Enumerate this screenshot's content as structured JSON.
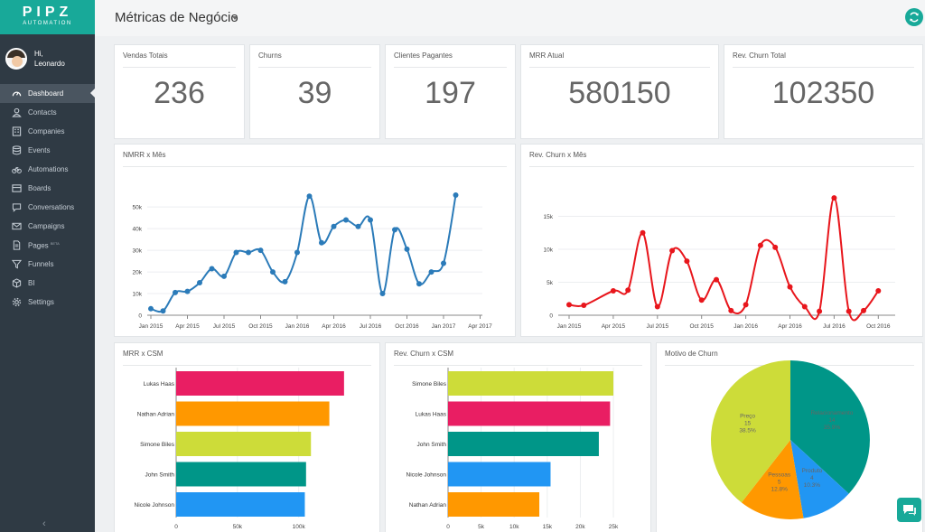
{
  "brand": {
    "name": "PIPZ",
    "subtitle": "AUTOMATION"
  },
  "user": {
    "greeting": "Hi,",
    "name": "Leonardo"
  },
  "sidebar": {
    "items": [
      {
        "label": "Dashboard",
        "icon": "dashboard-icon",
        "active": true
      },
      {
        "label": "Contacts",
        "icon": "user-icon"
      },
      {
        "label": "Companies",
        "icon": "building-icon"
      },
      {
        "label": "Events",
        "icon": "database-icon"
      },
      {
        "label": "Automations",
        "icon": "bicycle-icon"
      },
      {
        "label": "Boards",
        "icon": "board-icon"
      },
      {
        "label": "Conversations",
        "icon": "chat-icon"
      },
      {
        "label": "Campaigns",
        "icon": "envelope-icon"
      },
      {
        "label": "Pages",
        "icon": "page-icon",
        "badge": "BETA"
      },
      {
        "label": "Funnels",
        "icon": "funnel-icon"
      },
      {
        "label": "BI",
        "icon": "cube-icon"
      },
      {
        "label": "Settings",
        "icon": "gear-icon"
      }
    ],
    "collapse_icon": "chevron-left-icon"
  },
  "header": {
    "title": "Métricas de Negócio",
    "refresh_icon": "refresh-icon"
  },
  "kpis": [
    {
      "label": "Vendas Totais",
      "value": "236"
    },
    {
      "label": "Churns",
      "value": "39"
    },
    {
      "label": "Clientes Pagantes",
      "value": "197"
    },
    {
      "label": "MRR Atual",
      "value": "580150"
    },
    {
      "label": "Rev. Churn Total",
      "value": "102350"
    }
  ],
  "colors": {
    "accent": "#18a999",
    "sidebar": "#2f3a44",
    "line_blue": "#2b7bb9",
    "line_red": "#e8161c"
  },
  "chart_data": [
    {
      "type": "line",
      "title": "NMRR x Mês",
      "x_ticks": [
        "Jan 2015",
        "Apr 2015",
        "Jul 2015",
        "Oct 2015",
        "Jan 2016",
        "Apr 2016",
        "Jul 2016",
        "Oct 2016",
        "Jan 2017",
        "Apr 2017"
      ],
      "y_ticks": [
        "0",
        "10k",
        "20k",
        "30k",
        "40k",
        "50k"
      ],
      "ylim": [
        0,
        58000
      ],
      "series": [
        {
          "color": "#2b7bb9",
          "values": [
            3000,
            2000,
            10500,
            11000,
            15000,
            21500,
            18000,
            29000,
            29000,
            30000,
            20000,
            15500,
            29000,
            55000,
            33500,
            41000,
            44000,
            41000,
            44000,
            10000,
            39500,
            30500,
            14500,
            20000,
            24000,
            55500
          ]
        }
      ]
    },
    {
      "type": "line",
      "title": "Rev. Churn x Mês",
      "x_ticks": [
        "Jan 2015",
        "Apr 2015",
        "Jul 2015",
        "Oct 2015",
        "Jan 2016",
        "Apr 2016",
        "Jul 2016",
        "Oct 2016"
      ],
      "y_ticks": [
        "0",
        "5k",
        "10k",
        "15k"
      ],
      "ylim": [
        0,
        18500
      ],
      "series": [
        {
          "color": "#e8161c",
          "values": [
            1600,
            1500,
            null,
            3700,
            3800,
            12500,
            1300,
            9800,
            8200,
            2300,
            5400,
            700,
            1600,
            10600,
            10300,
            4300,
            1300,
            600,
            17800,
            600,
            700,
            3700
          ]
        }
      ]
    },
    {
      "type": "bar",
      "title": "MRR x CSM",
      "orientation": "horizontal",
      "categories": [
        "Lukas Haas",
        "Nathan Adrian",
        "Simone Biles",
        "John Smith",
        "Nicole Johnson"
      ],
      "values": [
        137000,
        125000,
        110000,
        106000,
        105000
      ],
      "colors": [
        "#e91e63",
        "#ff9800",
        "#cddc39",
        "#009688",
        "#2196f3"
      ],
      "x_ticks": [
        "0",
        "50k",
        "100k"
      ],
      "xlim": [
        0,
        150000
      ]
    },
    {
      "type": "bar",
      "title": "Rev. Churn x CSM",
      "orientation": "horizontal",
      "categories": [
        "Simone Biles",
        "Lukas Haas",
        "John Smith",
        "Nicole Johnson",
        "Nathan Adrian"
      ],
      "values": [
        25000,
        24500,
        22800,
        15500,
        13800
      ],
      "colors": [
        "#cddc39",
        "#e91e63",
        "#009688",
        "#2196f3",
        "#ff9800"
      ],
      "x_ticks": [
        "0",
        "5k",
        "10k",
        "15k",
        "20k",
        "25k"
      ],
      "xlim": [
        0,
        28000
      ]
    },
    {
      "type": "pie",
      "title": "Motivo de Churn",
      "slices": [
        {
          "label": "Relacionamento",
          "value": 14,
          "percent": "35.9%",
          "color": "#009688"
        },
        {
          "label": "Produto",
          "value": 4,
          "percent": "10.3%",
          "color": "#2196f3"
        },
        {
          "label": "Pessoas",
          "value": 5,
          "percent": "12.8%",
          "color": "#ff9800"
        },
        {
          "label": "Preço",
          "value": 15,
          "percent": "38.5%",
          "color": "#cddc39"
        }
      ]
    }
  ]
}
